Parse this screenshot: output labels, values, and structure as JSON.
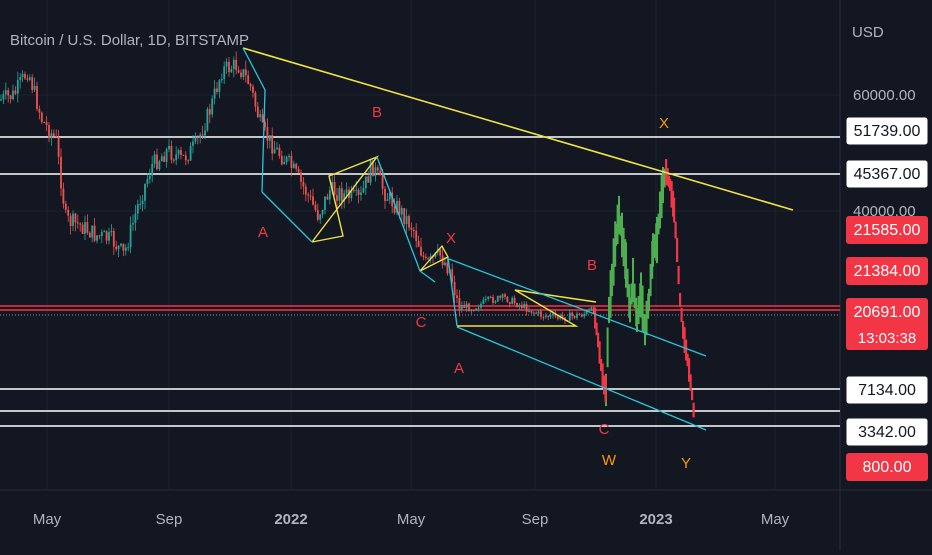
{
  "header": {
    "title": "Bitcoin / U.S. Dollar, 1D, BITSTAMP",
    "currency": "USD"
  },
  "colors": {
    "background": "#131722",
    "grid": "#1e222d",
    "text": "#b2b5be",
    "up": "#26a69a",
    "down": "#ef5350",
    "projection_up": "#4caf50",
    "projection_down": "#f23645",
    "trend": "#f0e442",
    "channel": "#26c6da",
    "wave_red": "#f23645",
    "wave_orange": "#ff9800",
    "level_white": "#ffffff",
    "level_red": "#f23645"
  },
  "chart_data": {
    "type": "candlestick",
    "title": "Bitcoin / U.S. Dollar, 1D, BITSTAMP",
    "xlabel": "",
    "ylabel": "USD",
    "x_ticks": [
      "May",
      "Sep",
      "2022",
      "May",
      "Sep",
      "2023",
      "May"
    ],
    "y_scale": "log",
    "y_ticks": [
      60000.0,
      40000.0
    ],
    "y_tick_labels": [
      "60000.00",
      "40000.00"
    ],
    "price_labels": [
      {
        "label": "51739.00",
        "style": "white"
      },
      {
        "label": "45367.00",
        "style": "white"
      },
      {
        "label": "21585.00",
        "style": "red"
      },
      {
        "label": "21384.00",
        "style": "red"
      },
      {
        "label": "20691.00",
        "style": "red",
        "countdown": "13:03:38"
      },
      {
        "label": "7134.00",
        "style": "white"
      },
      {
        "label": "3342.00",
        "style": "white"
      },
      {
        "label": "800.00",
        "style": "red"
      }
    ],
    "horizontal_levels": [
      51739,
      45367,
      20691,
      7134,
      3342
    ],
    "wave_labels": [
      {
        "text": "A",
        "color": "red"
      },
      {
        "text": "B",
        "color": "red"
      },
      {
        "text": "C",
        "color": "red"
      },
      {
        "text": "X",
        "color": "red"
      },
      {
        "text": "A",
        "color": "red"
      },
      {
        "text": "B",
        "color": "red"
      },
      {
        "text": "C",
        "color": "red"
      },
      {
        "text": "W",
        "color": "orange"
      },
      {
        "text": "X",
        "color": "orange"
      },
      {
        "text": "Y",
        "color": "orange"
      }
    ]
  }
}
